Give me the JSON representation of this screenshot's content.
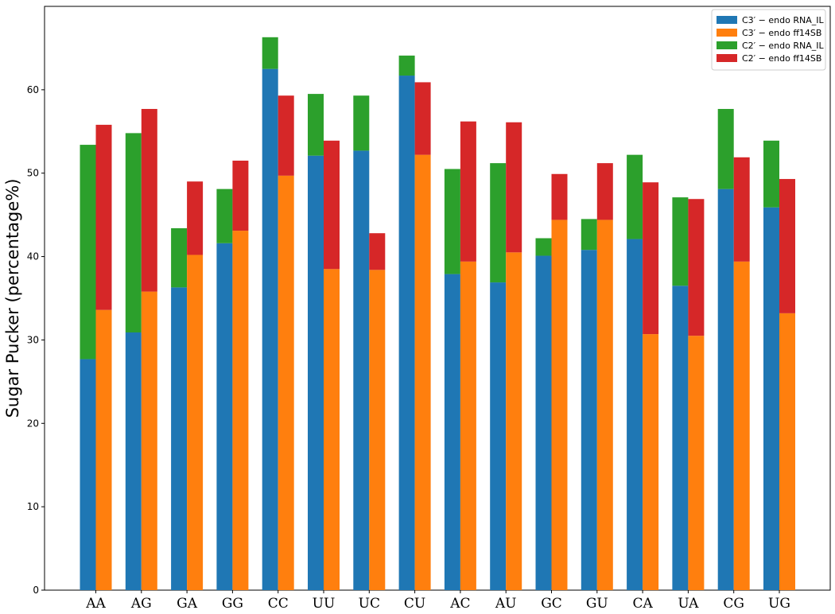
{
  "chart_data": {
    "type": "bar",
    "title": "",
    "xlabel": "",
    "ylabel": "Sugar Pucker (percentage%)",
    "ylim": [
      0,
      70
    ],
    "yticks": [
      0,
      10,
      20,
      30,
      40,
      50,
      60
    ],
    "grid": false,
    "legend_position": "top-right",
    "categories": [
      "AA",
      "AG",
      "GA",
      "GG",
      "CC",
      "UU",
      "UC",
      "CU",
      "AC",
      "AU",
      "GC",
      "GU",
      "CA",
      "UA",
      "CG",
      "UG"
    ],
    "groups": [
      {
        "name": "RNA_IL",
        "series": [
          {
            "name": "C3′ − endo RNA_IL",
            "color": "#1f77b4",
            "values": [
              27.7,
              30.9,
              36.3,
              41.6,
              62.5,
              52.1,
              52.7,
              61.7,
              37.9,
              36.9,
              40.1,
              40.8,
              42.1,
              36.5,
              48.1,
              45.9
            ]
          },
          {
            "name": "C2′ − endo RNA_IL",
            "color": "#2ca02c",
            "values": [
              25.7,
              23.9,
              7.1,
              6.5,
              3.8,
              7.4,
              6.6,
              2.4,
              12.6,
              14.3,
              2.1,
              3.7,
              10.1,
              10.6,
              9.6,
              8.0
            ]
          }
        ]
      },
      {
        "name": "ff14SB",
        "series": [
          {
            "name": "C3′ − endo ff14SB",
            "color": "#ff7f0e",
            "values": [
              33.6,
              35.8,
              40.2,
              43.1,
              49.7,
              38.5,
              38.4,
              52.2,
              39.4,
              40.5,
              44.4,
              44.4,
              30.7,
              30.5,
              39.4,
              33.2
            ]
          },
          {
            "name": "C2′ − endo ff14SB",
            "color": "#d62728",
            "values": [
              22.2,
              21.9,
              8.8,
              8.4,
              9.6,
              15.4,
              4.4,
              8.7,
              16.8,
              15.6,
              5.5,
              6.8,
              18.2,
              16.4,
              12.5,
              16.1
            ]
          }
        ]
      }
    ],
    "legend_entries": [
      {
        "label": "C3′ − endo RNA_IL",
        "color": "#1f77b4"
      },
      {
        "label": "C3′ − endo ff14SB",
        "color": "#ff7f0e"
      },
      {
        "label": "C2′ − endo RNA_IL",
        "color": "#2ca02c"
      },
      {
        "label": "C2′ − endo ff14SB",
        "color": "#d62728"
      }
    ]
  }
}
